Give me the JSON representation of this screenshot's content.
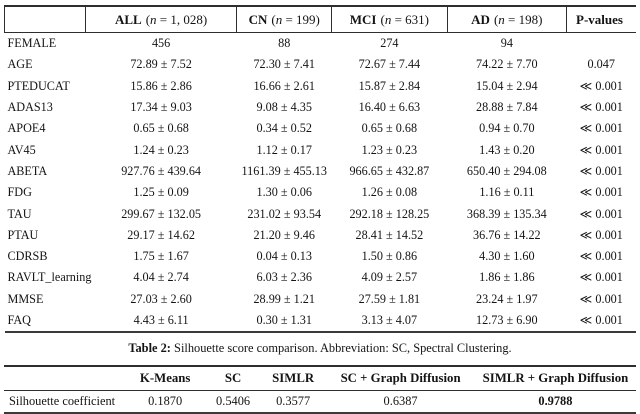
{
  "table1": {
    "columns": [
      {
        "label": "",
        "n_pre": "",
        "n_var": "",
        "n_post": ""
      },
      {
        "label": "ALL",
        "n_pre": "(",
        "n_var": "n",
        "n_post": " = 1, 028)"
      },
      {
        "label": "CN",
        "n_pre": "(",
        "n_var": "n",
        "n_post": " = 199)"
      },
      {
        "label": "MCI",
        "n_pre": "(",
        "n_var": "n",
        "n_post": " = 631)"
      },
      {
        "label": "AD",
        "n_pre": "(",
        "n_var": "n",
        "n_post": " = 198)"
      },
      {
        "label": "P-values",
        "n_pre": "",
        "n_var": "",
        "n_post": ""
      }
    ],
    "rows": [
      {
        "label": "FEMALE",
        "values": [
          "456",
          "88",
          "274",
          "94"
        ],
        "p": ""
      },
      {
        "label": "AGE",
        "values": [
          "72.89 ± 7.52",
          "72.30 ± 7.41",
          "72.67 ± 7.44",
          "74.22 ± 7.70"
        ],
        "p": "0.047"
      },
      {
        "label": "PTEDUCAT",
        "values": [
          "15.86 ± 2.86",
          "16.66 ± 2.61",
          "15.87 ± 2.84",
          "15.04 ± 2.94"
        ],
        "p": "≪ 0.001"
      },
      {
        "label": "ADAS13",
        "values": [
          "17.34 ± 9.03",
          "9.08 ± 4.35",
          "16.40 ± 6.63",
          "28.88 ± 7.84"
        ],
        "p": "≪ 0.001"
      },
      {
        "label": "APOE4",
        "values": [
          "0.65 ± 0.68",
          "0.34 ± 0.52",
          "0.65 ± 0.68",
          "0.94 ± 0.70"
        ],
        "p": "≪ 0.001"
      },
      {
        "label": "AV45",
        "values": [
          "1.24 ± 0.23",
          "1.12 ± 0.17",
          "1.23 ± 0.23",
          "1.43 ± 0.20"
        ],
        "p": "≪ 0.001"
      },
      {
        "label": "ABETA",
        "values": [
          "927.76 ± 439.64",
          "1161.39 ± 455.13",
          "966.65 ± 432.87",
          "650.40 ± 294.08"
        ],
        "p": "≪ 0.001"
      },
      {
        "label": "FDG",
        "values": [
          "1.25 ± 0.09",
          "1.30 ± 0.06",
          "1.26 ± 0.08",
          "1.16 ± 0.11"
        ],
        "p": "≪ 0.001"
      },
      {
        "label": "TAU",
        "values": [
          "299.67 ± 132.05",
          "231.02 ± 93.54",
          "292.18 ± 128.25",
          "368.39 ± 135.34"
        ],
        "p": "≪ 0.001"
      },
      {
        "label": "PTAU",
        "values": [
          "29.17 ± 14.62",
          "21.20 ± 9.46",
          "28.41 ± 14.52",
          "36.76 ± 14.22"
        ],
        "p": "≪ 0.001"
      },
      {
        "label": "CDRSB",
        "values": [
          "1.75 ± 1.67",
          "0.04 ± 0.13",
          "1.50 ± 0.86",
          "4.30 ± 1.60"
        ],
        "p": "≪ 0.001"
      },
      {
        "label": "RAVLT_learning",
        "values": [
          "4.04 ± 2.74",
          "6.03 ± 2.36",
          "4.09 ± 2.57",
          "1.86 ± 1.86"
        ],
        "p": "≪ 0.001"
      },
      {
        "label": "MMSE",
        "values": [
          "27.03 ± 2.60",
          "28.99 ± 1.21",
          "27.59 ± 1.81",
          "23.24 ± 1.97"
        ],
        "p": "≪ 0.001"
      },
      {
        "label": "FAQ",
        "values": [
          "4.43 ± 6.11",
          "0.30 ± 1.31",
          "3.13 ± 4.07",
          "12.73 ± 6.90"
        ],
        "p": "≪ 0.001"
      }
    ]
  },
  "caption": {
    "label": "Table 2:",
    "text": "Silhouette score comparison. Abbreviation: SC, Spectral Clustering."
  },
  "table2": {
    "columns": [
      {
        "label": ""
      },
      {
        "label": "K-Means"
      },
      {
        "label": "SC"
      },
      {
        "label": "SIMLR"
      },
      {
        "label": "SC + Graph Diffusion"
      },
      {
        "label": "SIMLR + Graph Diffusion"
      }
    ],
    "rows": [
      {
        "label": "Silhouette coefficient",
        "values": [
          "0.1870",
          "0.5406",
          "0.3577",
          "0.6387",
          "0.9788"
        ]
      }
    ]
  }
}
